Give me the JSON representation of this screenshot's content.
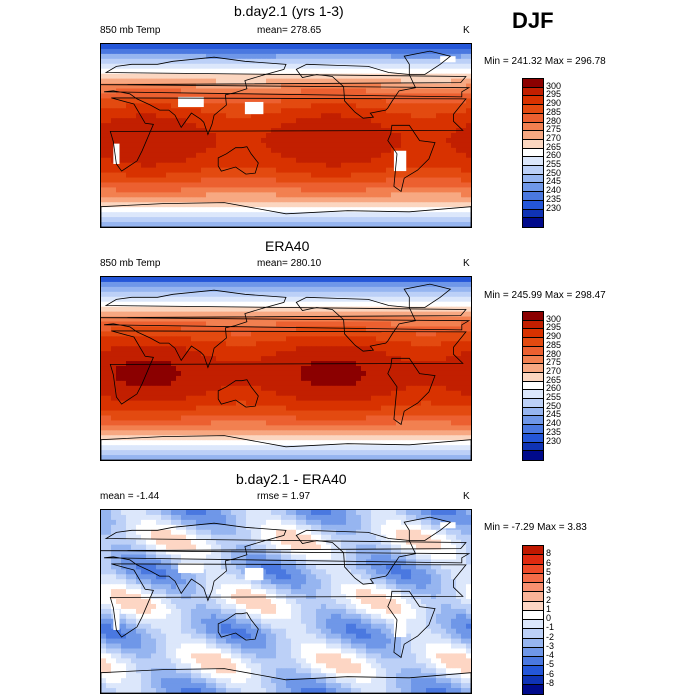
{
  "season": "DJF",
  "panels": [
    {
      "title": "b.day2.1 (yrs 1-3)",
      "left_label": "850 mb Temp",
      "center_label": "mean= 278.65",
      "units": "K",
      "minmax": "Min = 241.32 Max = 296.78",
      "colorbar": {
        "labels": [
          "300",
          "295",
          "290",
          "285",
          "280",
          "275",
          "270",
          "265",
          "260",
          "255",
          "250",
          "245",
          "240",
          "235",
          "230"
        ],
        "colors": [
          "#8b0000",
          "#c21f00",
          "#d83200",
          "#e34a10",
          "#ec6030",
          "#f28050",
          "#f7a882",
          "#fbd6c0",
          "#ffffff",
          "#dce7fb",
          "#bcd0f7",
          "#96b5f0",
          "#6f97e8",
          "#4a78e0",
          "#2456d8",
          "#0f33b5",
          "#000a8b"
        ]
      },
      "map_type": "temperature",
      "has_missing": true
    },
    {
      "title": "ERA40",
      "left_label": "850 mb Temp",
      "center_label": "mean= 280.10",
      "units": "K",
      "minmax": "Min = 245.99 Max = 298.47",
      "colorbar": {
        "labels": [
          "300",
          "295",
          "290",
          "285",
          "280",
          "275",
          "270",
          "265",
          "260",
          "255",
          "250",
          "245",
          "240",
          "235",
          "230"
        ],
        "colors": [
          "#8b0000",
          "#c21f00",
          "#d83200",
          "#e34a10",
          "#ec6030",
          "#f28050",
          "#f7a882",
          "#fbd6c0",
          "#ffffff",
          "#dce7fb",
          "#bcd0f7",
          "#96b5f0",
          "#6f97e8",
          "#4a78e0",
          "#2456d8",
          "#0f33b5",
          "#000a8b"
        ]
      },
      "map_type": "temperature",
      "has_missing": false
    },
    {
      "title": "b.day2.1 - ERA40",
      "left_label": "mean =  -1.44",
      "center_label": "rmse =   1.97",
      "units": "K",
      "minmax": "Min =  -7.29 Max =   3.83",
      "colorbar": {
        "labels": [
          "8",
          "6",
          "5",
          "4",
          "3",
          "2",
          "1",
          "0",
          "-1",
          "-2",
          "-3",
          "-4",
          "-5",
          "-6",
          "-8"
        ],
        "colors": [
          "#c01800",
          "#e02a10",
          "#ee4a28",
          "#f46c48",
          "#f89070",
          "#fab498",
          "#fdd6c4",
          "#ffffff",
          "#dce7fb",
          "#bcd0f7",
          "#96b5f0",
          "#6f97e8",
          "#4a78e0",
          "#2456d8",
          "#0f33b5",
          "#000a8b"
        ]
      },
      "map_type": "difference",
      "has_missing": true
    }
  ],
  "chart_data": [
    {
      "type": "heatmap",
      "title": "b.day2.1 (yrs 1-3)",
      "variable": "850 mb Temp",
      "units": "K",
      "mean": 278.65,
      "min": 241.32,
      "max": 296.78,
      "contour_levels": [
        230,
        235,
        240,
        245,
        250,
        255,
        260,
        265,
        270,
        275,
        280,
        285,
        290,
        295,
        300
      ]
    },
    {
      "type": "heatmap",
      "title": "ERA40",
      "variable": "850 mb Temp",
      "units": "K",
      "mean": 280.1,
      "min": 245.99,
      "max": 298.47,
      "contour_levels": [
        230,
        235,
        240,
        245,
        250,
        255,
        260,
        265,
        270,
        275,
        280,
        285,
        290,
        295,
        300
      ]
    },
    {
      "type": "heatmap",
      "title": "b.day2.1 - ERA40",
      "units": "K",
      "mean": -1.44,
      "rmse": 1.97,
      "min": -7.29,
      "max": 3.83,
      "contour_levels": [
        -8,
        -6,
        -5,
        -4,
        -3,
        -2,
        -1,
        0,
        1,
        2,
        3,
        4,
        5,
        6,
        8
      ]
    }
  ]
}
